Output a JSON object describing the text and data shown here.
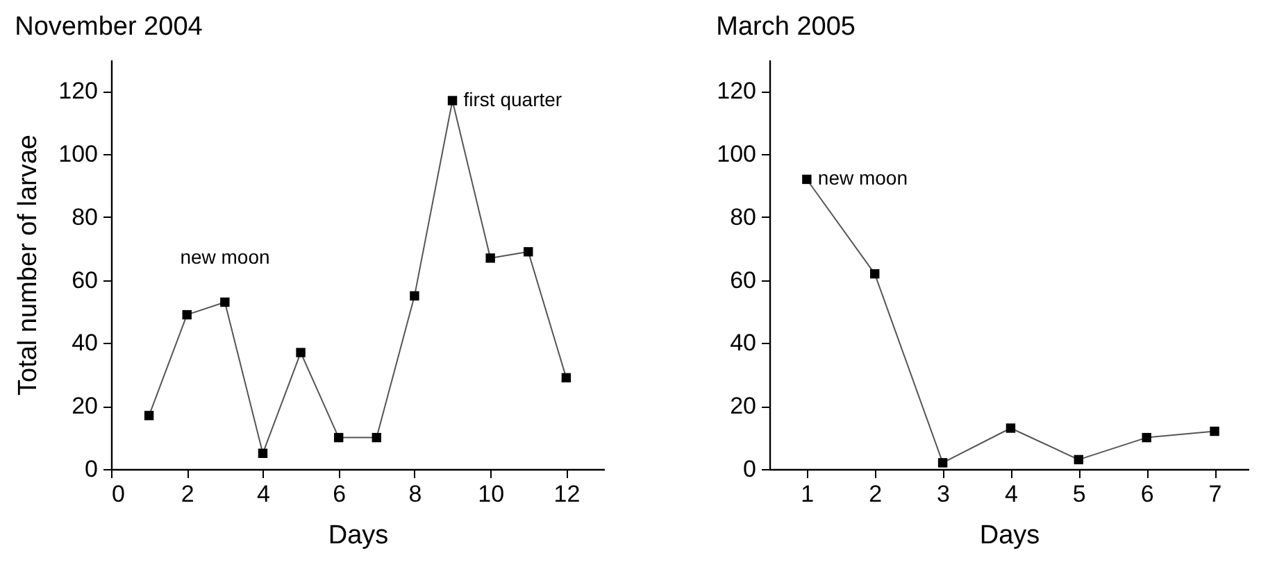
{
  "chart_data": [
    {
      "type": "line",
      "title": "November 2004",
      "xlabel": "Days",
      "ylabel": "Total number of larvae",
      "x": [
        1,
        2,
        3,
        4,
        5,
        6,
        7,
        8,
        9,
        10,
        11,
        12
      ],
      "series": [
        {
          "color": "#000000",
          "values": [
            17,
            49,
            53,
            5,
            37,
            10,
            10,
            55,
            117,
            67,
            69,
            29
          ]
        }
      ],
      "xlim": [
        0,
        13
      ],
      "xticks": [
        0,
        2,
        4,
        6,
        8,
        10,
        12
      ],
      "ylim": [
        0,
        130
      ],
      "yticks": [
        0,
        20,
        40,
        60,
        80,
        100,
        120
      ],
      "grid": false,
      "marker": "square",
      "line_style": "solid",
      "annotations": [
        "new moon",
        {
          "text": "first quarter",
          "x": 9,
          "y": 117
        }
      ]
    },
    {
      "type": "line",
      "title": "March 2005",
      "xlabel": "Days",
      "x": [
        1,
        2,
        3,
        4,
        5,
        6,
        7
      ],
      "series": [
        {
          "color": "#000000",
          "values": [
            92,
            62,
            2,
            13,
            3,
            10,
            12
          ]
        }
      ],
      "xlim": [
        0.45,
        7.5
      ],
      "xticks": [
        1,
        2,
        3,
        4,
        5,
        6,
        7
      ],
      "ylim": [
        0,
        130
      ],
      "yticks": [
        0,
        20,
        40,
        60,
        80,
        100,
        120
      ],
      "grid": false,
      "marker": "square",
      "line_style": "solid",
      "annotations": [
        {
          "text": "new moon",
          "x": 1,
          "y": 92
        }
      ]
    }
  ]
}
